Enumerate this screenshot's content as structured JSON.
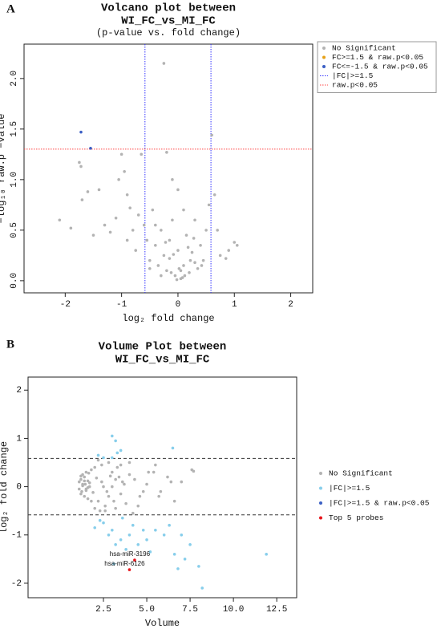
{
  "chart_data": [
    {
      "type": "scatter",
      "panel": "A",
      "title": [
        "Volcano plot between",
        "WI_FC_vs_MI_FC"
      ],
      "subtitle": "(p-value vs. fold change)",
      "xlabel": "log₂ fold change",
      "ylabel": "−log₁₀ raw.p −value",
      "xlim": [
        -2.73,
        2.39
      ],
      "ylim": [
        -0.12,
        2.34
      ],
      "xticks": [
        -2,
        -1,
        0,
        1,
        2
      ],
      "yticks": [
        {
          "value": 0,
          "label": "0.0"
        },
        0.5,
        {
          "value": 1,
          "label": "1.0"
        },
        1.5,
        {
          "value": 2,
          "label": "2.0"
        }
      ],
      "grid": false,
      "legend": "outside right",
      "legend_box": true,
      "series": [
        {
          "name": "No Significant",
          "color": "#b3b3b3",
          "x": [
            -2.1,
            -1.75,
            -1.72,
            -1.7,
            -1.6,
            -1.5,
            -1.4,
            -1.3,
            -1.2,
            -1.0,
            -1.05,
            -0.95,
            -0.9,
            -0.85,
            -0.8,
            -0.75,
            -0.7,
            -0.65,
            -0.6,
            -0.55,
            -0.5,
            -0.45,
            -0.4,
            -0.35,
            -0.3,
            -0.25,
            -0.2,
            -0.15,
            -0.1,
            -0.05,
            0.0,
            0.05,
            0.1,
            0.15,
            0.2,
            0.25,
            0.3,
            0.35,
            0.4,
            0.45,
            0.5,
            0.55,
            -0.25,
            -0.2,
            -0.1,
            0.0,
            0.6,
            0.65,
            0.7,
            0.75,
            0.85,
            0.9,
            1.0,
            1.05,
            -0.02,
            0.08,
            -0.12,
            0.02,
            -0.3,
            0.22,
            -1.9,
            -1.1,
            -0.9,
            -0.4,
            0.1,
            0.3,
            -0.15,
            0.05,
            0.18,
            -0.08,
            0.12,
            -0.22,
            0.28,
            -0.5,
            0.42
          ],
          "values": [
            0.6,
            1.17,
            1.13,
            0.8,
            0.88,
            0.45,
            0.9,
            0.55,
            0.48,
            1.25,
            1.0,
            1.08,
            0.85,
            0.72,
            0.5,
            0.3,
            0.65,
            1.25,
            0.55,
            0.4,
            0.2,
            0.7,
            0.35,
            0.15,
            0.5,
            0.25,
            0.1,
            0.4,
            0.6,
            0.05,
            0.3,
            0.02,
            0.15,
            0.45,
            0.08,
            0.28,
            0.6,
            0.12,
            0.35,
            0.2,
            0.5,
            0.75,
            2.15,
            1.27,
            1.0,
            0.9,
            1.44,
            0.85,
            0.5,
            0.25,
            0.22,
            0.3,
            0.38,
            0.35,
            0.01,
            0.03,
            0.08,
            0.12,
            0.05,
            0.2,
            0.52,
            0.62,
            0.4,
            0.55,
            0.7,
            0.18,
            0.22,
            0.1,
            0.33,
            0.26,
            0.05,
            0.38,
            0.42,
            0.12,
            0.15
          ]
        },
        {
          "name": "FC>=1.5 & raw.p<0.05",
          "color": "#e6a117",
          "x": [],
          "values": []
        },
        {
          "name": "FC<=-1.5 & raw.p<0.05",
          "color": "#3b5fc4",
          "x": [
            -1.72,
            -1.55
          ],
          "values": [
            1.47,
            1.31
          ]
        }
      ],
      "reference_lines": [
        {
          "name": "|FC|>=1.5",
          "color": "#3333ff",
          "axis": "x",
          "values": [
            -0.585,
            0.585
          ]
        },
        {
          "name": "raw.p<0.05",
          "color": "#ff4444",
          "axis": "y",
          "values": [
            1.301
          ]
        }
      ]
    },
    {
      "type": "scatter",
      "panel": "B",
      "title": [
        "Volume Plot between",
        "WI_FC_vs_MI_FC"
      ],
      "xlabel": "Volume",
      "ylabel": "log₂ fold change",
      "xlim": [
        -1.85,
        13.65
      ],
      "ylim": [
        -2.3,
        2.27
      ],
      "xticks": [
        2.5,
        {
          "value": 5,
          "label": "5.0"
        },
        7.5,
        {
          "value": 10,
          "label": "10.0"
        },
        12.5
      ],
      "yticks": [
        -2,
        -1,
        0,
        1,
        2
      ],
      "grid": false,
      "legend": "outside right",
      "legend_box": false,
      "series": [
        {
          "name": "No Significant",
          "color": "#b3b3b3",
          "x": [
            1.1,
            1.2,
            1.3,
            1.4,
            1.5,
            1.6,
            1.7,
            1.2,
            1.3,
            1.4,
            1.5,
            1.6,
            1.8,
            2.0,
            2.2,
            2.4,
            2.6,
            2.8,
            3.0,
            3.2,
            3.4,
            3.6,
            3.8,
            4.0,
            4.3,
            4.6,
            5.0,
            5.4,
            5.8,
            6.2,
            6.6,
            7.0,
            7.6,
            1.1,
            1.3,
            1.5,
            1.7,
            1.9,
            2.1,
            2.3,
            2.5,
            2.7,
            2.9,
            3.1,
            3.3,
            3.5,
            3.7,
            4.0,
            4.5,
            5.1,
            5.7,
            6.4,
            1.2,
            1.4,
            1.6,
            1.8,
            2.0,
            2.4,
            2.8,
            3.2,
            1.25,
            1.45,
            1.65,
            2.2,
            2.6,
            3.0,
            3.5,
            4.2,
            4.8,
            5.5,
            7.7
          ],
          "values": [
            0.1,
            0.15,
            0.05,
            0.2,
            -0.05,
            0.12,
            0.0,
            -0.15,
            0.25,
            -0.2,
            0.3,
            -0.25,
            0.35,
            0.4,
            -0.3,
            0.45,
            -0.4,
            0.5,
            0.3,
            -0.45,
            0.2,
            0.1,
            -0.35,
            0.25,
            0.15,
            -0.2,
            0.05,
            0.3,
            -0.1,
            0.2,
            -0.3,
            0.1,
            0.35,
            -0.05,
            0.02,
            -0.08,
            0.08,
            -0.12,
            0.18,
            -0.5,
            0.0,
            -0.1,
            0.22,
            -0.3,
            0.4,
            -0.15,
            0.05,
            0.5,
            -0.4,
            0.3,
            -0.2,
            0.1,
            0.22,
            0.12,
            -0.02,
            -0.3,
            -0.45,
            0.1,
            -0.2,
            0.15,
            -0.1,
            0.05,
            0.28,
            0.55,
            -0.5,
            0.0,
            0.45,
            -0.55,
            -0.1,
            0.45,
            0.32
          ]
        },
        {
          "name": "|FC|>=1.5",
          "color": "#87ceeb",
          "x": [
            3.0,
            3.2,
            3.5,
            3.3,
            6.5,
            2.2,
            2.5,
            3.0,
            2.0,
            2.5,
            2.8,
            3.0,
            3.2,
            3.5,
            3.8,
            4.0,
            4.2,
            4.5,
            5.0,
            5.5,
            6.0,
            6.3,
            6.6,
            7.0,
            7.2,
            7.5,
            8.0,
            8.2,
            11.9,
            3.1,
            5.2,
            6.8,
            3.6,
            2.3,
            4.8
          ],
          "values": [
            1.05,
            0.95,
            0.75,
            0.7,
            0.8,
            0.65,
            0.6,
            0.6,
            -0.85,
            -0.75,
            -1.0,
            -0.9,
            -1.2,
            -1.1,
            -1.3,
            -1.0,
            -0.8,
            -1.2,
            -1.1,
            -0.9,
            -1.0,
            -0.8,
            -1.4,
            -1.0,
            -1.5,
            -1.2,
            -1.65,
            -2.1,
            -1.4,
            -1.6,
            -1.35,
            -1.7,
            -0.65,
            -0.7,
            -0.9
          ]
        },
        {
          "name": "|FC|>=1.5 & raw.p<0.05",
          "color": "#3b5fc4",
          "x": [],
          "values": []
        },
        {
          "name": "Top 5 probes",
          "color": "#e8141b",
          "x": [
            4.3,
            4.0
          ],
          "values": [
            -1.52,
            -1.72
          ]
        }
      ],
      "hlines": [
        -0.585,
        0.585
      ],
      "annotations": [
        {
          "text": "hsa-miR-3196",
          "x": 4.3,
          "y": -1.52
        },
        {
          "text": "hsa-miR-6126",
          "x": 4.0,
          "y": -1.72
        }
      ]
    }
  ]
}
